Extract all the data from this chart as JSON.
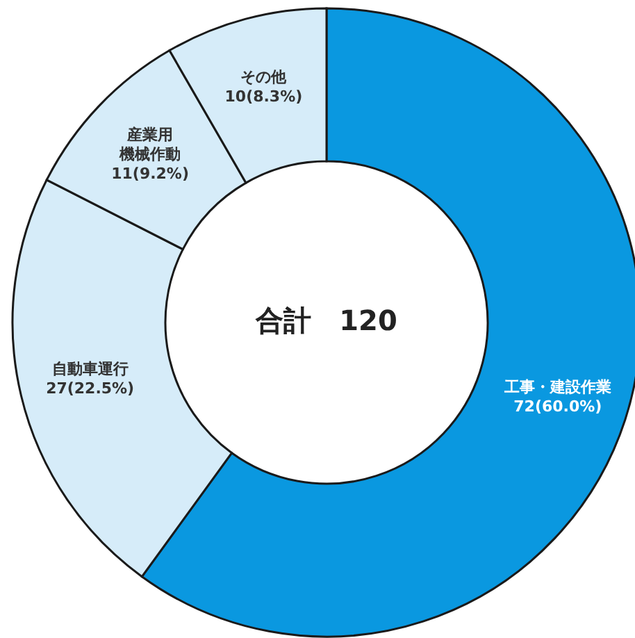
{
  "chart_data": {
    "type": "donut",
    "categories": [
      "工事・建設作業",
      "自動車運行",
      "産業用機械作動",
      "その他"
    ],
    "values": [
      72,
      27,
      11,
      10
    ],
    "colors": [
      "#0a98e0",
      "#d6ecf9",
      "#d6ecf9",
      "#d6ecf9"
    ],
    "value_labels": [
      "72(60.0%)",
      "27(22.5%)",
      "11(9.2%)",
      "10(8.3%)"
    ],
    "annotations": [
      "合計　120"
    ]
  }
}
